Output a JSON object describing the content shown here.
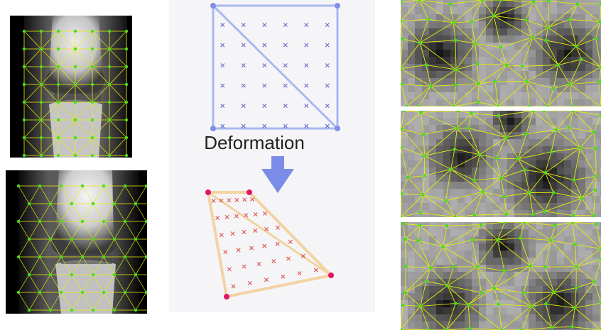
{
  "diagram": {
    "caption": "Deformation",
    "colors": {
      "mesh_line": "#e8f000",
      "mesh_node": "#44dd22",
      "source_triangle": "#a9b8f0",
      "source_vertex": "#7f8fe8",
      "source_marker": "#6a6ad0",
      "arrow": "#7a8ce8",
      "target_triangle": "#f2d3a2",
      "target_vertex": "#e0156a",
      "target_marker": "#e05050",
      "xray_background": "#000000"
    },
    "icons": [
      "mesh-node-icon",
      "cross-marker-icon",
      "down-arrow-icon"
    ]
  }
}
